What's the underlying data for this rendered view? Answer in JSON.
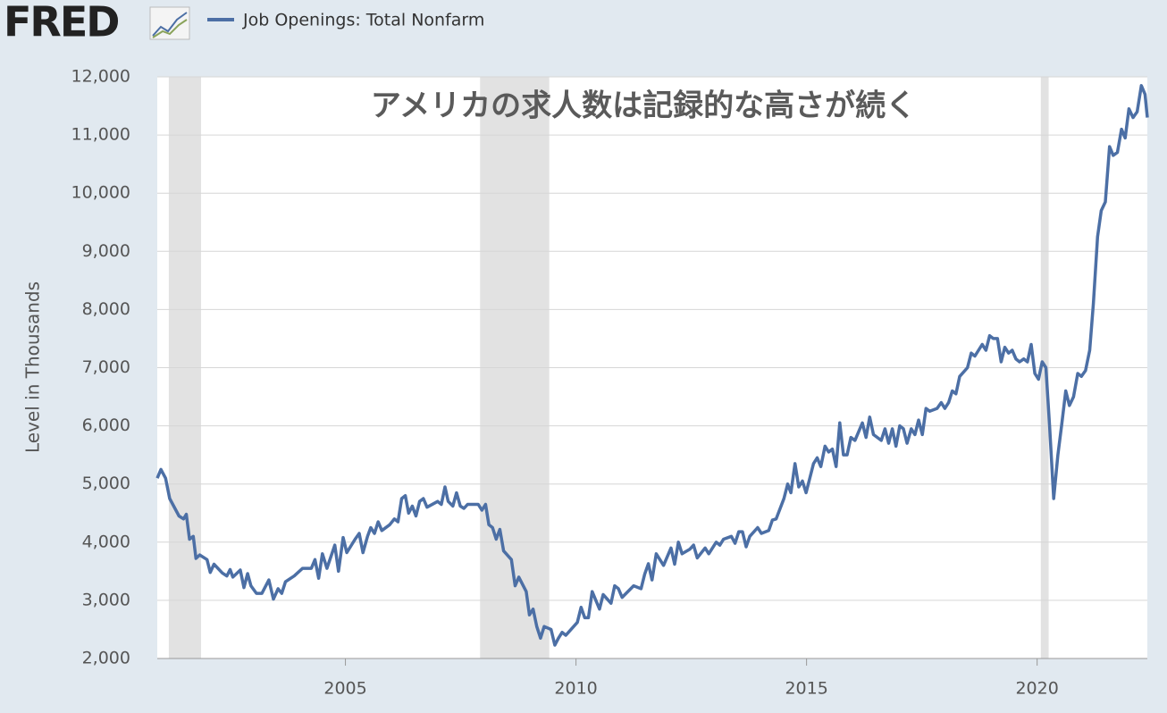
{
  "logo": "FRED",
  "chart_data": {
    "type": "line",
    "title": "アメリカの求人数は記録的な高さが続く",
    "y_label": "Level in Thousands",
    "xlim": [
      2000.92,
      2022.39
    ],
    "xticks": [
      2005,
      2010,
      2015,
      2020
    ],
    "ylim": [
      2000,
      12000
    ],
    "yticks": [
      {
        "value": 2000,
        "label": "2,000"
      },
      {
        "value": 3000,
        "label": "3,000"
      },
      {
        "value": 4000,
        "label": "4,000"
      },
      {
        "value": 5000,
        "label": "5,000"
      },
      {
        "value": 6000,
        "label": "6,000"
      },
      {
        "value": 7000,
        "label": "7,000"
      },
      {
        "value": 8000,
        "label": "8,000"
      },
      {
        "value": 9000,
        "label": "9,000"
      },
      {
        "value": 10000,
        "label": "10,000"
      },
      {
        "value": 11000,
        "label": "11,000"
      },
      {
        "value": 12000,
        "label": "12,000"
      }
    ],
    "grid": true,
    "recessions": [
      [
        2001.17,
        2001.87
      ],
      [
        2007.92,
        2009.42
      ],
      [
        2020.08,
        2020.25
      ]
    ],
    "series": [
      {
        "name": "Job Openings: Total Nonfarm",
        "color": "#4c6fa5",
        "x": [
          2000.92,
          2001.0,
          2001.1,
          2001.19,
          2001.39,
          2001.49,
          2001.55,
          2001.62,
          2001.7,
          2001.76,
          2001.84,
          2002.0,
          2002.07,
          2002.15,
          2002.33,
          2002.43,
          2002.5,
          2002.56,
          2002.72,
          2002.8,
          2002.88,
          2002.95,
          2003.07,
          2003.19,
          2003.34,
          2003.44,
          2003.54,
          2003.62,
          2003.7,
          2003.89,
          2004.07,
          2004.26,
          2004.34,
          2004.42,
          2004.5,
          2004.6,
          2004.77,
          2004.85,
          2004.95,
          2005.03,
          2005.21,
          2005.3,
          2005.38,
          2005.48,
          2005.55,
          2005.63,
          2005.71,
          2005.79,
          2005.96,
          2006.06,
          2006.14,
          2006.22,
          2006.3,
          2006.37,
          2006.45,
          2006.53,
          2006.61,
          2006.69,
          2006.77,
          2007.0,
          2007.08,
          2007.16,
          2007.23,
          2007.33,
          2007.41,
          2007.49,
          2007.57,
          2007.65,
          2007.88,
          2007.96,
          2008.04,
          2008.11,
          2008.19,
          2008.27,
          2008.35,
          2008.43,
          2008.6,
          2008.68,
          2008.76,
          2008.92,
          2008.99,
          2009.07,
          2009.15,
          2009.23,
          2009.31,
          2009.46,
          2009.54,
          2009.62,
          2009.7,
          2009.78,
          2010.03,
          2010.11,
          2010.19,
          2010.27,
          2010.35,
          2010.51,
          2010.59,
          2010.76,
          2010.84,
          2010.92,
          2011.0,
          2011.25,
          2011.41,
          2011.49,
          2011.57,
          2011.65,
          2011.74,
          2011.9,
          2012.06,
          2012.14,
          2012.22,
          2012.3,
          2012.47,
          2012.55,
          2012.63,
          2012.8,
          2012.88,
          2013.04,
          2013.12,
          2013.2,
          2013.37,
          2013.45,
          2013.53,
          2013.61,
          2013.69,
          2013.77,
          2013.94,
          2014.02,
          2014.18,
          2014.26,
          2014.34,
          2014.51,
          2014.59,
          2014.66,
          2014.75,
          2014.83,
          2014.91,
          2014.99,
          2015.15,
          2015.23,
          2015.31,
          2015.4,
          2015.48,
          2015.56,
          2015.64,
          2015.72,
          2015.8,
          2015.88,
          2015.96,
          2016.05,
          2016.21,
          2016.29,
          2016.37,
          2016.45,
          2016.62,
          2016.7,
          2016.78,
          2016.86,
          2016.94,
          2017.02,
          2017.1,
          2017.18,
          2017.27,
          2017.35,
          2017.43,
          2017.51,
          2017.59,
          2017.67,
          2017.83,
          2017.92,
          2018.0,
          2018.08,
          2018.16,
          2018.24,
          2018.32,
          2018.49,
          2018.57,
          2018.65,
          2018.81,
          2018.89,
          2018.97,
          2019.05,
          2019.14,
          2019.22,
          2019.3,
          2019.38,
          2019.46,
          2019.54,
          2019.62,
          2019.71,
          2019.79,
          2019.87,
          2019.95,
          2020.03,
          2020.11,
          2020.19,
          2020.27,
          2020.36,
          2020.45,
          2020.53,
          2020.62,
          2020.7,
          2020.79,
          2020.88,
          2020.96,
          2021.05,
          2021.14,
          2021.22,
          2021.31,
          2021.39,
          2021.48,
          2021.57,
          2021.65,
          2021.74,
          2021.83,
          2021.91,
          2021.99,
          2022.08,
          2022.17,
          2022.26,
          2022.34,
          2022.39
        ],
        "values": [
          5100,
          5250,
          5100,
          4750,
          4450,
          4400,
          4480,
          4050,
          4100,
          3720,
          3780,
          3700,
          3480,
          3620,
          3470,
          3420,
          3530,
          3400,
          3520,
          3220,
          3460,
          3250,
          3120,
          3120,
          3350,
          3020,
          3200,
          3120,
          3320,
          3420,
          3550,
          3550,
          3700,
          3380,
          3800,
          3550,
          3950,
          3500,
          4080,
          3820,
          4050,
          4150,
          3820,
          4100,
          4250,
          4150,
          4350,
          4200,
          4300,
          4400,
          4350,
          4750,
          4800,
          4500,
          4620,
          4450,
          4700,
          4750,
          4600,
          4700,
          4650,
          4950,
          4700,
          4620,
          4850,
          4620,
          4580,
          4650,
          4650,
          4550,
          4650,
          4300,
          4250,
          4050,
          4220,
          3850,
          3700,
          3250,
          3400,
          3150,
          2750,
          2850,
          2550,
          2350,
          2550,
          2500,
          2230,
          2350,
          2450,
          2400,
          2620,
          2880,
          2700,
          2700,
          3150,
          2850,
          3100,
          2950,
          3250,
          3200,
          3050,
          3250,
          3200,
          3450,
          3630,
          3350,
          3800,
          3600,
          3900,
          3620,
          4000,
          3800,
          3880,
          3950,
          3730,
          3900,
          3800,
          4000,
          3950,
          4050,
          4100,
          3980,
          4180,
          4180,
          3920,
          4100,
          4250,
          4150,
          4200,
          4380,
          4400,
          4750,
          5000,
          4850,
          5350,
          4950,
          5050,
          4850,
          5350,
          5450,
          5300,
          5650,
          5550,
          5600,
          5300,
          6050,
          5500,
          5500,
          5800,
          5750,
          6050,
          5800,
          6150,
          5850,
          5750,
          5950,
          5700,
          5950,
          5650,
          6000,
          5950,
          5700,
          5950,
          5850,
          6100,
          5850,
          6300,
          6250,
          6300,
          6400,
          6300,
          6400,
          6600,
          6550,
          6850,
          7000,
          7250,
          7200,
          7400,
          7300,
          7550,
          7500,
          7500,
          7100,
          7350,
          7250,
          7300,
          7150,
          7100,
          7150,
          7100,
          7400,
          6900,
          6800,
          7100,
          7000,
          6000,
          4750,
          5500,
          6000,
          6600,
          6350,
          6500,
          6900,
          6850,
          6950,
          7300,
          8100,
          9250,
          9700,
          9850,
          10800,
          10650,
          10700,
          11100,
          10950,
          11450,
          11300,
          11400,
          11850,
          11700,
          11300
        ]
      }
    ]
  }
}
